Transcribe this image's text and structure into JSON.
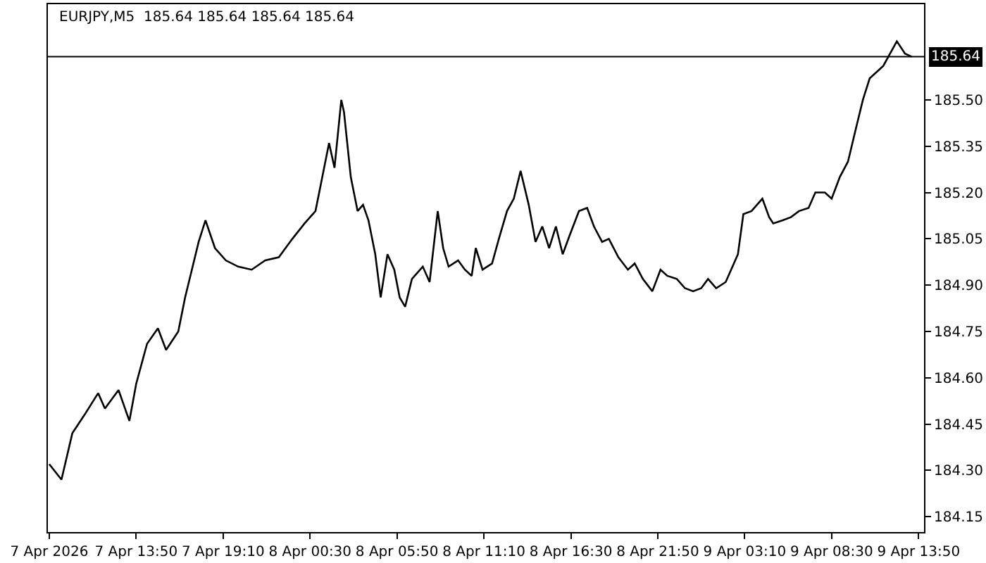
{
  "chart_data": {
    "type": "line",
    "title": "EURJPY,M5  185.64 185.64 185.64 185.64",
    "x": [
      "2026-04-07T08:30",
      "2026-04-07T09:15",
      "2026-04-07T09:55",
      "2026-04-07T10:40",
      "2026-04-07T11:30",
      "2026-04-07T11:55",
      "2026-04-07T12:45",
      "2026-04-07T13:25",
      "2026-04-07T13:50",
      "2026-04-07T14:30",
      "2026-04-07T15:10",
      "2026-04-07T15:40",
      "2026-04-07T16:25",
      "2026-04-07T16:50",
      "2026-04-07T17:15",
      "2026-04-07T17:40",
      "2026-04-07T18:05",
      "2026-04-07T18:40",
      "2026-04-07T19:20",
      "2026-04-07T20:05",
      "2026-04-07T20:55",
      "2026-04-07T21:45",
      "2026-04-07T22:35",
      "2026-04-07T23:25",
      "2026-04-08T00:10",
      "2026-04-08T00:50",
      "2026-04-08T01:15",
      "2026-04-08T01:40",
      "2026-04-08T02:00",
      "2026-04-08T02:25",
      "2026-04-08T02:35",
      "2026-04-08T03:00",
      "2026-04-08T03:25",
      "2026-04-08T03:45",
      "2026-04-08T04:05",
      "2026-04-08T04:30",
      "2026-04-08T04:50",
      "2026-04-08T05:15",
      "2026-04-08T05:40",
      "2026-04-08T06:00",
      "2026-04-08T06:20",
      "2026-04-08T06:45",
      "2026-04-08T07:25",
      "2026-04-08T07:50",
      "2026-04-08T08:20",
      "2026-04-08T08:40",
      "2026-04-08T09:00",
      "2026-04-08T09:35",
      "2026-04-08T10:00",
      "2026-04-08T10:25",
      "2026-04-08T10:40",
      "2026-04-08T11:05",
      "2026-04-08T11:40",
      "2026-04-08T12:05",
      "2026-04-08T12:35",
      "2026-04-08T13:00",
      "2026-04-08T13:25",
      "2026-04-08T13:55",
      "2026-04-08T14:20",
      "2026-04-08T14:45",
      "2026-04-08T15:10",
      "2026-04-08T15:35",
      "2026-04-08T16:00",
      "2026-04-08T16:25",
      "2026-04-08T17:00",
      "2026-04-08T17:30",
      "2026-04-08T17:55",
      "2026-04-08T18:25",
      "2026-04-08T18:50",
      "2026-04-08T19:25",
      "2026-04-08T20:00",
      "2026-04-08T20:25",
      "2026-04-08T20:55",
      "2026-04-08T21:30",
      "2026-04-08T22:00",
      "2026-04-08T22:25",
      "2026-04-08T23:00",
      "2026-04-08T23:30",
      "2026-04-09T00:00",
      "2026-04-09T00:30",
      "2026-04-09T00:55",
      "2026-04-09T01:25",
      "2026-04-09T02:00",
      "2026-04-09T02:20",
      "2026-04-09T02:45",
      "2026-04-09T03:05",
      "2026-04-09T03:35",
      "2026-04-09T04:15",
      "2026-04-09T04:40",
      "2026-04-09T04:55",
      "2026-04-09T05:30",
      "2026-04-09T06:00",
      "2026-04-09T06:30",
      "2026-04-09T07:05",
      "2026-04-09T07:30",
      "2026-04-09T08:05",
      "2026-04-09T08:30",
      "2026-04-09T09:00",
      "2026-04-09T09:30",
      "2026-04-09T10:00",
      "2026-04-09T10:25",
      "2026-04-09T10:50",
      "2026-04-09T11:15",
      "2026-04-09T11:40",
      "2026-04-09T12:05",
      "2026-04-09T12:30",
      "2026-04-09T13:00",
      "2026-04-09T13:25"
    ],
    "series": [
      {
        "color": "#000000",
        "values": [
          184.32,
          184.27,
          184.42,
          184.48,
          184.55,
          184.5,
          184.56,
          184.46,
          184.58,
          184.71,
          184.76,
          184.69,
          184.75,
          184.86,
          184.95,
          185.04,
          185.11,
          185.02,
          184.98,
          184.96,
          184.95,
          184.98,
          184.99,
          185.05,
          185.1,
          185.14,
          185.25,
          185.36,
          185.28,
          185.5,
          185.46,
          185.25,
          185.14,
          185.16,
          185.11,
          185.0,
          184.86,
          185.0,
          184.95,
          184.86,
          184.83,
          184.92,
          184.96,
          184.91,
          185.14,
          185.02,
          184.96,
          184.98,
          184.95,
          184.93,
          185.02,
          184.95,
          184.97,
          185.05,
          185.14,
          185.18,
          185.27,
          185.16,
          185.04,
          185.09,
          185.02,
          185.09,
          185.0,
          185.06,
          185.14,
          185.15,
          185.09,
          185.04,
          185.05,
          184.99,
          184.95,
          184.97,
          184.92,
          184.88,
          184.95,
          184.93,
          184.92,
          184.89,
          184.88,
          184.89,
          184.92,
          184.89,
          184.91,
          184.95,
          185.0,
          185.13,
          185.14,
          185.18,
          185.12,
          185.1,
          185.11,
          185.12,
          185.14,
          185.15,
          185.2,
          185.2,
          185.18,
          185.25,
          185.3,
          185.41,
          185.5,
          185.57,
          185.59,
          185.61,
          185.65,
          185.69,
          185.65,
          185.64
        ]
      }
    ],
    "xlim": [
      "2026-04-07T08:25",
      "2026-04-09T14:10"
    ],
    "xticks": [
      {
        "value": "2026-04-07T08:30",
        "label": "7 Apr 2026"
      },
      {
        "value": "2026-04-07T13:50",
        "label": "7 Apr 13:50"
      },
      {
        "value": "2026-04-07T19:10",
        "label": "7 Apr 19:10"
      },
      {
        "value": "2026-04-08T00:30",
        "label": "8 Apr 00:30"
      },
      {
        "value": "2026-04-08T05:50",
        "label": "8 Apr 05:50"
      },
      {
        "value": "2026-04-08T11:10",
        "label": "8 Apr 11:10"
      },
      {
        "value": "2026-04-08T16:30",
        "label": "8 Apr 16:30"
      },
      {
        "value": "2026-04-08T21:50",
        "label": "8 Apr 21:50"
      },
      {
        "value": "2026-04-09T03:10",
        "label": "9 Apr 03:10"
      },
      {
        "value": "2026-04-09T08:30",
        "label": "9 Apr 08:30"
      },
      {
        "value": "2026-04-09T13:50",
        "label": "9 Apr 13:50"
      }
    ],
    "ylim": [
      184.1,
      185.81
    ],
    "yticks": [
      {
        "value": 184.15,
        "label": "184.15"
      },
      {
        "value": 184.3,
        "label": "184.30"
      },
      {
        "value": 184.45,
        "label": "184.45"
      },
      {
        "value": 184.6,
        "label": "184.60"
      },
      {
        "value": 184.75,
        "label": "184.75"
      },
      {
        "value": 184.9,
        "label": "184.90"
      },
      {
        "value": 185.05,
        "label": "185.05"
      },
      {
        "value": 185.2,
        "label": "185.20"
      },
      {
        "value": 185.35,
        "label": "185.35"
      },
      {
        "value": 185.5,
        "label": "185.50"
      }
    ],
    "ref_lines": [
      {
        "axis": "y",
        "value": 185.64,
        "label": "185.64",
        "color": "#000000"
      }
    ]
  }
}
